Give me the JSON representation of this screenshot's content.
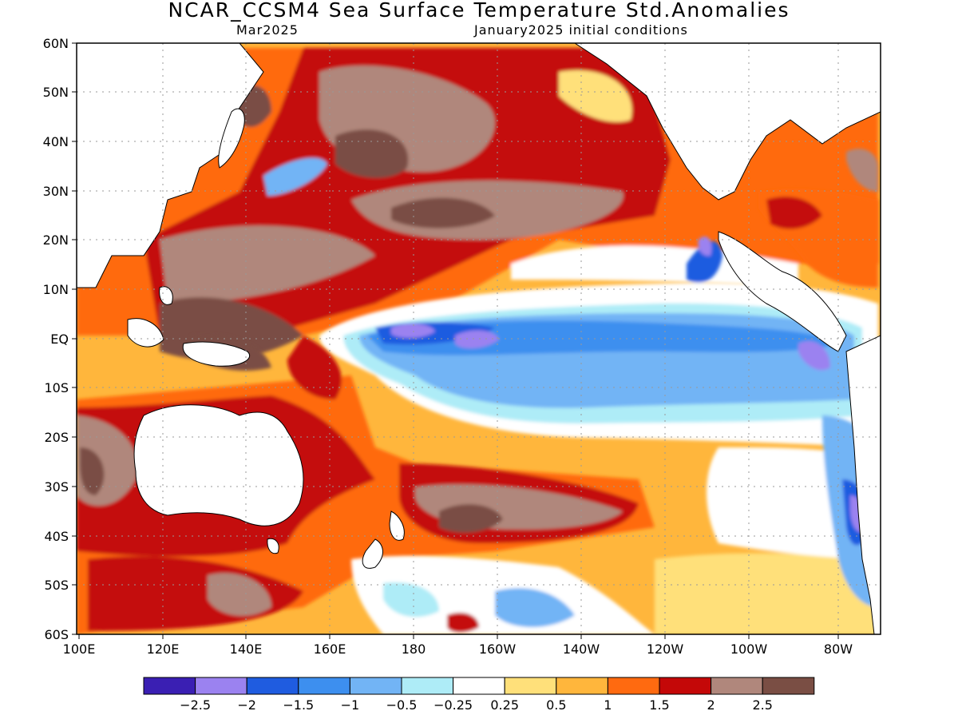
{
  "header": {
    "title": "NCAR_CCSM4 Sea Surface Temperature Std.Anomalies",
    "forecast_month": "Mar2025",
    "initial_conditions": "January2025 initial conditions"
  },
  "axes": {
    "lat_labels": [
      "60N",
      "50N",
      "40N",
      "30N",
      "20N",
      "10N",
      "EQ",
      "10S",
      "20S",
      "30S",
      "40S",
      "50S",
      "60S"
    ],
    "lon_labels": [
      "100E",
      "120E",
      "140E",
      "160E",
      "180",
      "160W",
      "140W",
      "120W",
      "100W",
      "80W"
    ]
  },
  "colorbar": {
    "colors": [
      "#3a1fb3",
      "#9b82f0",
      "#1f5ce0",
      "#3d8fef",
      "#72b4f5",
      "#aeecf7",
      "#ffffff",
      "#ffe07a",
      "#ffb63c",
      "#ff6a10",
      "#c40808",
      "#b0877c",
      "#7a4e44"
    ],
    "labels": [
      "−2.5",
      "−2",
      "−1.5",
      "−1",
      "−0.5",
      "−0.25",
      "0.25",
      "0.5",
      "1",
      "1.5",
      "2",
      "2.5"
    ]
  },
  "colors": {
    "warm_strong": "#c40808",
    "warm_extreme": "#7a4e44",
    "cool": "#72b4f5",
    "cool_strong": "#1f5ce0"
  }
}
